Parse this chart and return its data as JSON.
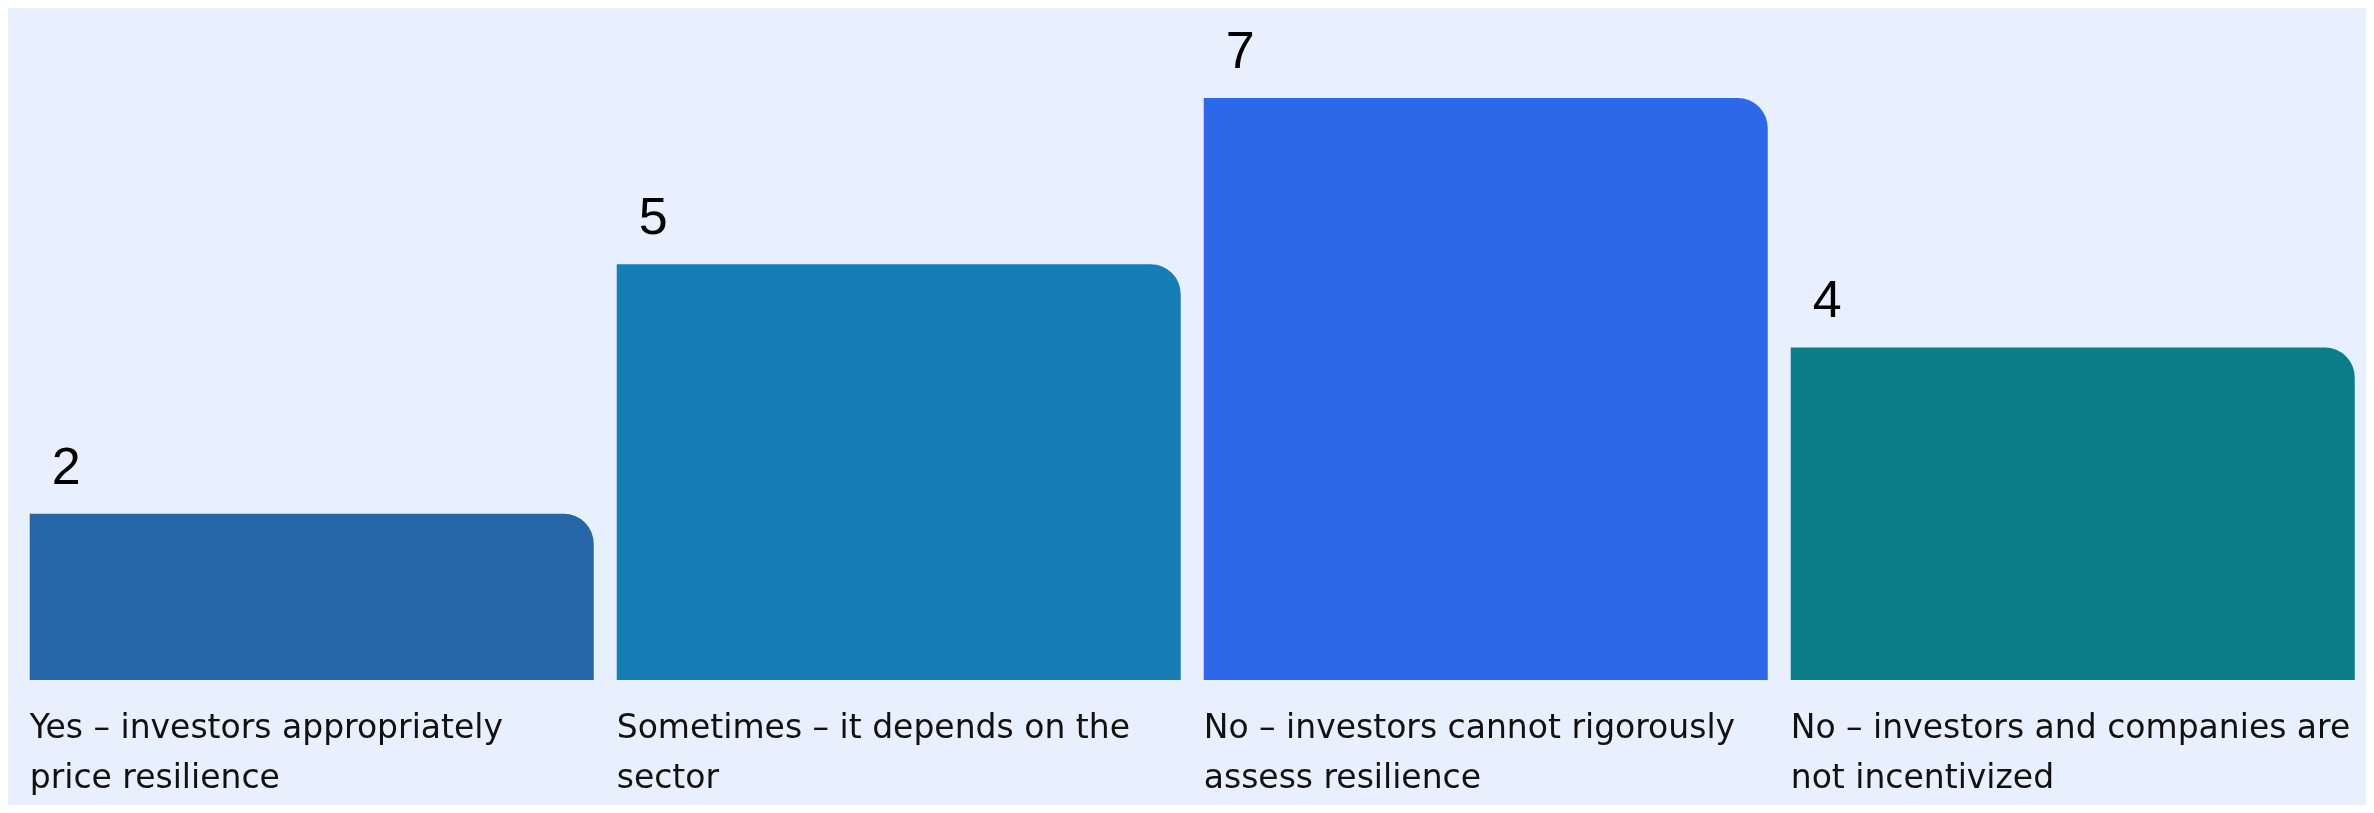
{
  "chart_data": {
    "type": "bar",
    "categories": [
      "Yes – investors appropriately price resilience",
      "Sometimes – it depends on the sector",
      "No – investors cannot rigorously assess resilience",
      "No – investors and companies are not incentivized"
    ],
    "values": [
      2,
      5,
      7,
      4
    ],
    "colors": [
      "#2566a8",
      "#177db5",
      "#2d68e8",
      "#0b7e87"
    ],
    "data_labels": true,
    "grid": false,
    "legend": false
  }
}
